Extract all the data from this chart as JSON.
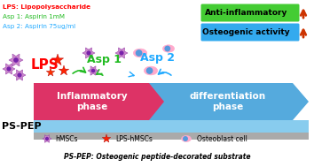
{
  "top_left_lines": [
    {
      "text": "LPS: Lipopolysaccharide",
      "color": "#ff0000",
      "bold": true
    },
    {
      "text": "Asp 1: Aspirin 1mM",
      "color": "#22bb22",
      "bold": false
    },
    {
      "text": "Asp 2: Aspirin 75ug/ml",
      "color": "#22aaff",
      "bold": false
    }
  ],
  "label_LPS": "LPS",
  "label_Asp1": "Asp 1",
  "label_Asp2": "Asp 2",
  "label_LPS_color": "#ff0000",
  "label_Asp1_color": "#22bb22",
  "label_Asp2_color": "#22aaff",
  "arrow1_label": "Inflammatory\nphase",
  "arrow1_color": "#dd3366",
  "arrow2_label": "differentiation\nphase",
  "arrow2_color": "#55aadd",
  "box1_label": "Anti-inflammatory",
  "box1_color": "#44cc33",
  "box2_label": "Osteogenic activity",
  "box2_color": "#33aaee",
  "substrate_top_color": "#88ccee",
  "substrate_bot_color": "#aaaaaa",
  "ps_pep_label": "PS-PEP",
  "legend_text": [
    "hMSCs",
    "LPS-hMSCs",
    "Osteoblast cell"
  ],
  "bottom_label": "PS-PEP: Osteogenic peptide-decorated substrate",
  "background_color": "#ffffff"
}
